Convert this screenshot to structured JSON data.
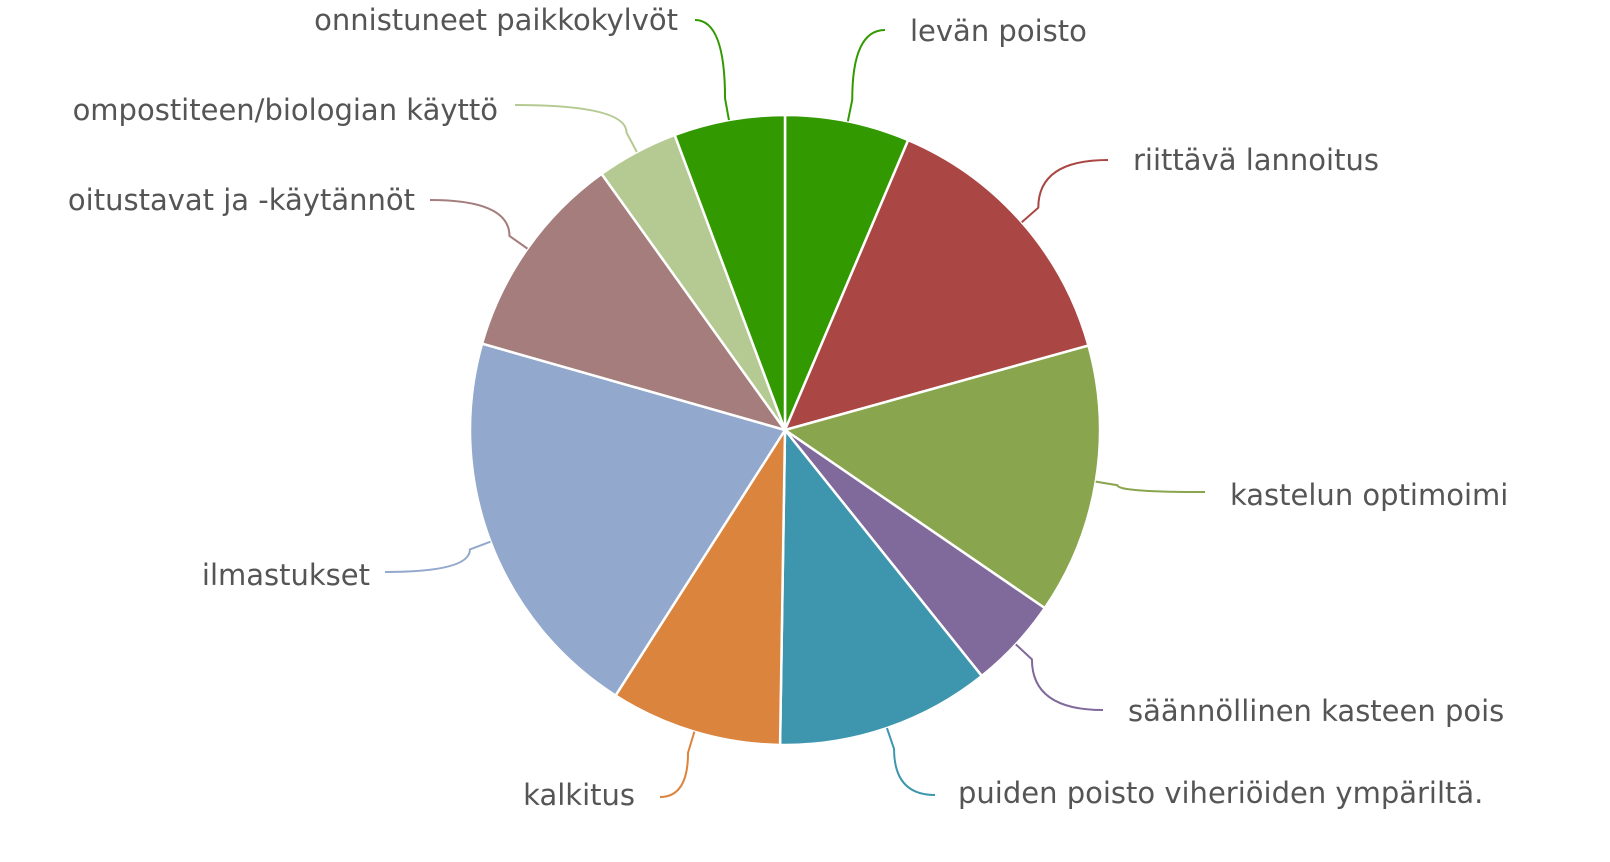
{
  "chart_data": {
    "type": "pie",
    "categories": [
      "levän poisto",
      "riittävä lannoitus",
      "kastelun optimoimi",
      "säännöllinen kasteen pois",
      "puiden poisto viheriöiden ympäriltä.",
      "kalkitus",
      "ilmastukset",
      "oitustavat ja -käytännöt",
      "ompostiteen/biologian käyttö",
      "onnistuneet paikkokylvöt"
    ],
    "values": [
      6.4,
      14.3,
      13.9,
      4.7,
      11.0,
      8.8,
      20.4,
      10.7,
      4.2,
      5.7
    ],
    "colors": [
      "#339900",
      "#aa4643",
      "#89a54e",
      "#80699b",
      "#3d96ae",
      "#db843d",
      "#92a8cd",
      "#a47d7c",
      "#b5ca92",
      "#339900"
    ]
  }
}
